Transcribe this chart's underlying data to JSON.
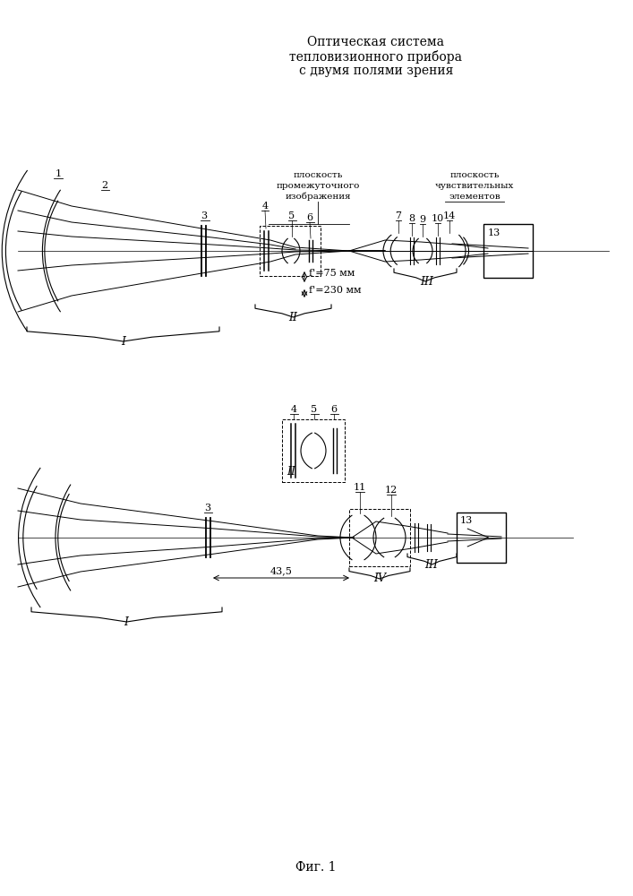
{
  "title_line1": "Оптическая система",
  "title_line2": "тепловизионного прибора",
  "title_line3": "с двумя полями зрения",
  "fig_label": "Фиг. 1",
  "background_color": "#ffffff",
  "line_color": "#000000",
  "fig_width": 7.07,
  "fig_height": 10.0
}
